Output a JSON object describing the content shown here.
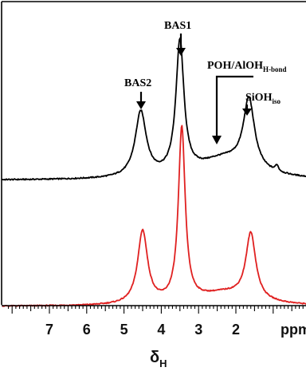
{
  "chart_data": {
    "type": "line",
    "xlabel": "δ",
    "xlabel_sub": "H",
    "xlim": [
      8,
      0
    ],
    "x_ticks": [
      7,
      6,
      5,
      4,
      3,
      2
    ],
    "x_unit": "ppm",
    "grid": false,
    "series": [
      {
        "color": "#000000",
        "peaks": [
          {
            "center": 4.55,
            "height": 0.32,
            "width": 0.18
          },
          {
            "center": 3.5,
            "height": 0.65,
            "width": 0.13
          },
          {
            "center": 2.3,
            "height": 0.1,
            "width": 0.9
          },
          {
            "center": 1.65,
            "height": 0.34,
            "width": 0.18
          },
          {
            "center": 0.9,
            "height": 0.03,
            "width": 0.05
          }
        ],
        "baseline_offset": 0.0
      },
      {
        "color": "#e02020",
        "peaks": [
          {
            "center": 4.5,
            "height": 0.42,
            "width": 0.16
          },
          {
            "center": 3.45,
            "height": 1.0,
            "width": 0.11
          },
          {
            "center": 2.3,
            "height": 0.07,
            "width": 0.9
          },
          {
            "center": 1.6,
            "height": 0.38,
            "width": 0.16
          }
        ],
        "baseline_offset": 0.0
      }
    ],
    "annotations": [
      {
        "label": "BAS1",
        "sub": "",
        "x": 3.5
      },
      {
        "label": "BAS2",
        "sub": "",
        "x": 4.55
      },
      {
        "label": "POH/AlOH",
        "sub": "H-bond",
        "x": 2.45
      },
      {
        "label": "SiOH",
        "sub": "iso",
        "x": 1.65
      }
    ],
    "colors": {
      "top_series": "#000000",
      "bottom_series": "#e02020",
      "frame": "#000000"
    }
  }
}
